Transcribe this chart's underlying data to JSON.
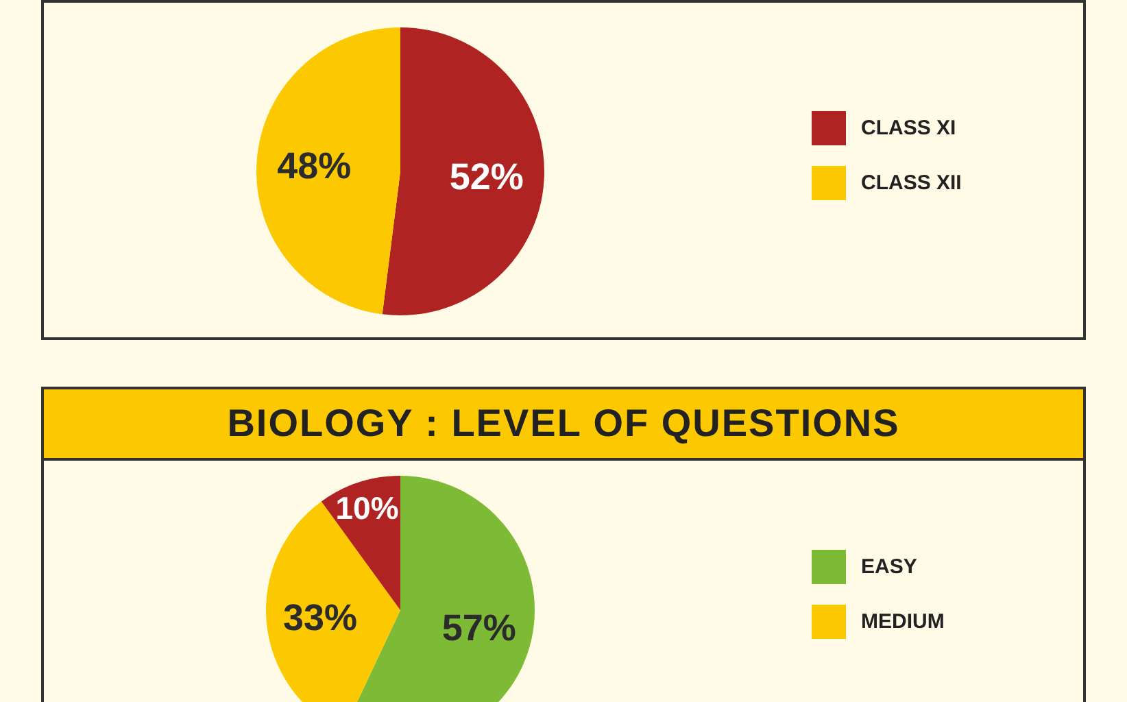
{
  "chart_data": [
    {
      "type": "pie",
      "categories": [
        "CLASS XI",
        "CLASS XII"
      ],
      "values": [
        52,
        48
      ],
      "colors": [
        "#b02323",
        "#fcc900"
      ],
      "value_labels": [
        "52%",
        "48%"
      ],
      "legend": "right"
    },
    {
      "type": "pie",
      "title": "BIOLOGY : LEVEL OF QUESTIONS",
      "categories": [
        "EASY",
        "MEDIUM",
        null
      ],
      "values": [
        57,
        33,
        10
      ],
      "colors": [
        "#7dbb36",
        "#fcc900",
        "#b02323"
      ],
      "value_labels": [
        "57%",
        "33%",
        "10%"
      ],
      "legend": "right"
    }
  ]
}
